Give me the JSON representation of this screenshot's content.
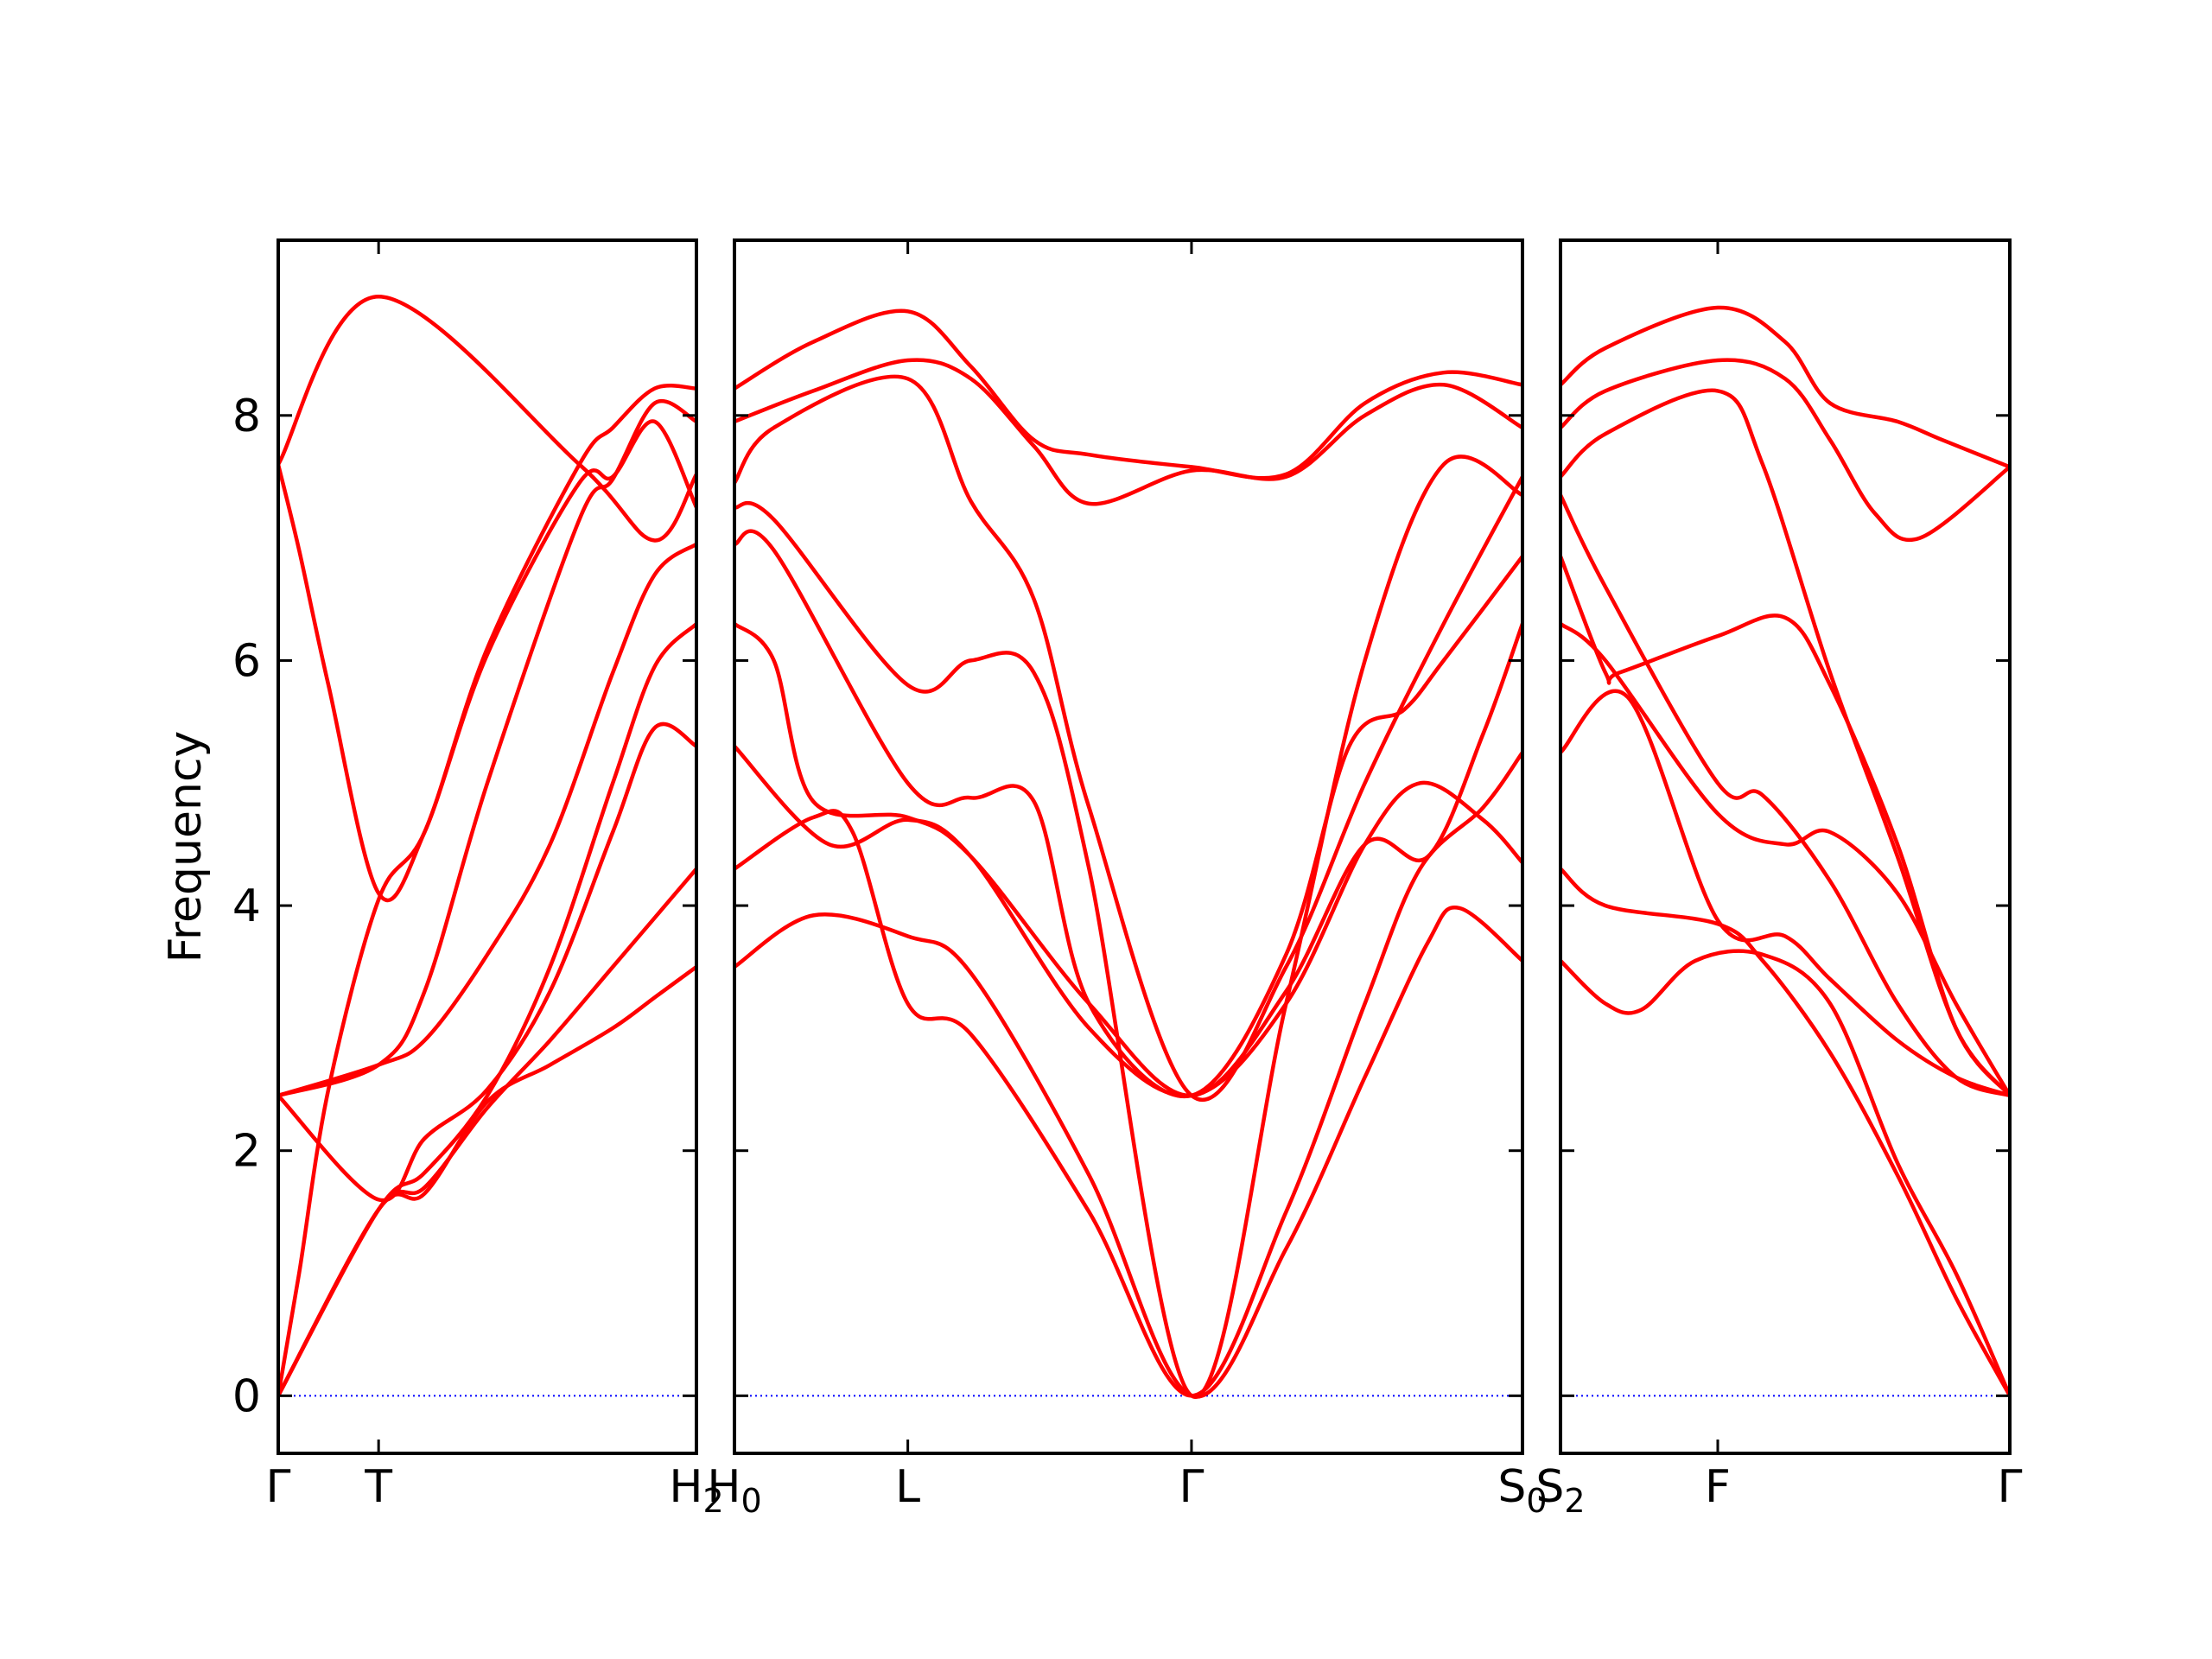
{
  "chart_data": {
    "type": "line",
    "ylabel": "Frequency",
    "ylim": [
      -0.47,
      9.43
    ],
    "yticks": [
      0,
      2,
      4,
      6,
      8
    ],
    "line_color": "#ff0000",
    "zero_line_color": "#0000ff",
    "grid": false,
    "panels": [
      {
        "xticks": [
          {
            "x": 0.0,
            "label": "Γ"
          },
          {
            "x": 0.24,
            "label": "T"
          },
          {
            "x": 1.0,
            "label": "H",
            "sub": "2"
          }
        ],
        "series": [
          {
            "x": [
              0,
              0.24,
              0.72,
              0.9,
              1.0
            ],
            "y": [
              7.6,
              8.97,
              7.6,
              6.98,
              7.52
            ]
          },
          {
            "x": [
              0,
              0.05,
              0.12,
              0.24,
              0.35,
              0.5,
              0.72,
              0.8,
              0.9,
              1.0
            ],
            "y": [
              7.6,
              6.9,
              5.8,
              4.1,
              4.6,
              6.1,
              7.6,
              7.9,
              8.22,
              8.22
            ]
          },
          {
            "x": [
              0,
              0.05,
              0.12,
              0.24,
              0.35,
              0.5,
              0.72,
              0.8,
              0.9,
              1.0
            ],
            "y": [
              0.0,
              1.0,
              2.5,
              4.05,
              4.6,
              6.05,
              7.45,
              7.5,
              7.95,
              7.25
            ]
          },
          {
            "x": [
              0,
              0.24,
              0.35,
              0.5,
              0.72,
              0.8,
              0.9,
              1.0
            ],
            "y": [
              2.45,
              2.7,
              3.3,
              5.0,
              7.15,
              7.48,
              8.1,
              7.95
            ]
          },
          {
            "x": [
              0,
              0.24,
              0.35,
              0.5,
              0.65,
              0.8,
              0.9,
              1.0
            ],
            "y": [
              2.45,
              2.7,
              2.9,
              3.6,
              4.5,
              5.9,
              6.7,
              6.95
            ]
          },
          {
            "x": [
              0,
              0.24,
              0.35,
              0.5,
              0.65,
              0.8,
              0.9,
              1.0
            ],
            "y": [
              0.0,
              1.52,
              1.82,
              2.45,
              3.5,
              5.0,
              5.95,
              6.3
            ]
          },
          {
            "x": [
              0,
              0.24,
              0.35,
              0.5,
              0.65,
              0.8,
              0.9,
              1.0
            ],
            "y": [
              2.45,
              1.6,
              2.1,
              2.5,
              3.3,
              4.6,
              5.45,
              5.3
            ]
          },
          {
            "x": [
              0,
              0.24,
              0.35,
              0.5,
              0.65,
              0.8,
              0.9,
              1.0
            ],
            "y": [
              0.0,
              1.52,
              1.7,
              2.35,
              2.9,
              3.5,
              3.9,
              4.3
            ]
          },
          {
            "x": [
              0,
              0.24,
              0.35,
              0.5,
              0.65,
              0.8,
              0.9,
              1.0
            ],
            "y": [
              0.0,
              1.52,
              1.65,
              2.4,
              2.7,
              3.0,
              3.25,
              3.5
            ]
          }
        ]
      },
      {
        "xticks": [
          {
            "x": 0.0,
            "label": "H",
            "sub": "0"
          },
          {
            "x": 0.22,
            "label": "L"
          },
          {
            "x": 0.58,
            "label": "Γ"
          },
          {
            "x": 1.0,
            "label": "S",
            "sub": "0"
          }
        ],
        "series": [
          {
            "x": [
              0,
              0.1,
              0.22,
              0.3,
              0.38,
              0.45,
              0.58,
              0.7,
              0.8,
              0.9,
              1.0
            ],
            "y": [
              8.22,
              8.6,
              8.85,
              8.4,
              7.8,
              7.68,
              7.58,
              7.52,
              8.1,
              8.35,
              8.25
            ]
          },
          {
            "x": [
              0,
              0.1,
              0.22,
              0.3,
              0.38,
              0.45,
              0.58,
              0.7,
              0.8,
              0.9,
              1.0
            ],
            "y": [
              7.95,
              8.2,
              8.45,
              8.3,
              7.75,
              7.28,
              7.55,
              7.5,
              8.0,
              8.25,
              7.9
            ]
          },
          {
            "x": [
              0,
              0.05,
              0.22,
              0.3,
              0.38,
              0.45,
              0.58,
              0.7,
              0.8,
              0.9,
              1.0
            ],
            "y": [
              7.45,
              7.9,
              8.3,
              7.3,
              6.5,
              4.8,
              2.45,
              3.5,
              5.0,
              6.3,
              7.5
            ]
          },
          {
            "x": [
              0,
              0.05,
              0.22,
              0.3,
              0.38,
              0.45,
              0.58,
              0.7,
              0.8,
              0.9,
              1.0
            ],
            "y": [
              7.25,
              7.15,
              5.8,
              6.0,
              5.9,
              4.3,
              0.0,
              3.2,
              6.0,
              7.6,
              7.35
            ]
          },
          {
            "x": [
              0,
              0.05,
              0.22,
              0.3,
              0.38,
              0.45,
              0.58,
              0.7,
              0.78,
              0.85,
              0.9,
              1.0
            ],
            "y": [
              6.95,
              6.9,
              5.0,
              4.88,
              4.85,
              3.2,
              2.45,
              3.6,
              5.3,
              5.6,
              6.0,
              6.85
            ]
          },
          {
            "x": [
              0,
              0.05,
              0.1,
              0.22,
              0.3,
              0.45,
              0.58,
              0.7,
              0.8,
              0.88,
              0.95,
              1.0
            ],
            "y": [
              6.3,
              6.0,
              4.85,
              4.72,
              4.4,
              3.2,
              2.45,
              3.3,
              4.5,
              4.4,
              5.4,
              6.3
            ]
          },
          {
            "x": [
              0,
              0.12,
              0.22,
              0.3,
              0.45,
              0.58,
              0.7,
              0.8,
              0.87,
              0.95,
              1.0
            ],
            "y": [
              5.3,
              4.5,
              4.7,
              4.4,
              3.0,
              2.45,
              3.2,
              4.5,
              5.0,
              4.7,
              4.35
            ]
          },
          {
            "x": [
              0,
              0.1,
              0.15,
              0.22,
              0.3,
              0.45,
              0.58,
              0.7,
              0.8,
              0.87,
              0.95,
              1.0
            ],
            "y": [
              4.3,
              4.72,
              4.6,
              3.2,
              2.95,
              1.5,
              0.0,
              1.5,
              3.2,
              4.3,
              4.8,
              5.25
            ]
          },
          {
            "x": [
              0,
              0.1,
              0.22,
              0.3,
              0.45,
              0.58,
              0.7,
              0.8,
              0.88,
              0.92,
              1.0
            ],
            "y": [
              3.5,
              3.92,
              3.75,
              3.45,
              1.8,
              0.0,
              1.2,
              2.6,
              3.7,
              3.98,
              3.55
            ]
          }
        ]
      },
      {
        "xticks": [
          {
            "x": 0.0,
            "label": "S",
            "sub": "2"
          },
          {
            "x": 0.35,
            "label": "F"
          },
          {
            "x": 1.0,
            "label": "Γ"
          }
        ],
        "series": [
          {
            "x": [
              0,
              0.1,
              0.35,
              0.5,
              0.6,
              0.75,
              0.85,
              1.0
            ],
            "y": [
              8.25,
              8.55,
              8.88,
              8.6,
              8.1,
              7.95,
              7.8,
              7.58
            ]
          },
          {
            "x": [
              0,
              0.1,
              0.35,
              0.5,
              0.6,
              0.7,
              0.8,
              1.0
            ],
            "y": [
              7.9,
              8.2,
              8.45,
              8.3,
              7.8,
              7.2,
              7.0,
              7.58
            ]
          },
          {
            "x": [
              0,
              0.1,
              0.35,
              0.45,
              0.6,
              0.75,
              0.88,
              1.0
            ],
            "y": [
              7.5,
              7.85,
              8.2,
              7.6,
              5.9,
              4.4,
              3.0,
              2.45
            ]
          },
          {
            "x": [
              0,
              0.1,
              0.35,
              0.45,
              0.6,
              0.75,
              0.88,
              1.0
            ],
            "y": [
              7.35,
              6.6,
              5.0,
              4.9,
              4.2,
              3.2,
              2.6,
              2.45
            ]
          },
          {
            "x": [
              0,
              0.1,
              0.13,
              0.35,
              0.5,
              0.6,
              0.75,
              0.88,
              1.0
            ],
            "y": [
              6.85,
              5.9,
              5.9,
              6.2,
              6.35,
              5.8,
              4.5,
              3.0,
              2.45
            ]
          },
          {
            "x": [
              0,
              0.1,
              0.35,
              0.5,
              0.6,
              0.75,
              0.88,
              1.0
            ],
            "y": [
              6.3,
              6.0,
              4.75,
              4.5,
              4.6,
              4.1,
              3.2,
              2.45
            ]
          },
          {
            "x": [
              0,
              0.15,
              0.35,
              0.5,
              0.6,
              0.75,
              0.88,
              1.0
            ],
            "y": [
              5.25,
              5.7,
              3.88,
              3.75,
              3.4,
              2.9,
              2.6,
              2.45
            ]
          },
          {
            "x": [
              0,
              0.1,
              0.35,
              0.45,
              0.6,
              0.75,
              0.88,
              1.0
            ],
            "y": [
              4.3,
              4.0,
              3.85,
              3.55,
              2.8,
              1.8,
              0.8,
              0.0
            ]
          },
          {
            "x": [
              0,
              0.1,
              0.18,
              0.3,
              0.45,
              0.6,
              0.75,
              0.88,
              1.0
            ],
            "y": [
              3.55,
              3.2,
              3.15,
              3.55,
              3.6,
              3.2,
              1.9,
              1.0,
              0.0
            ]
          }
        ]
      }
    ]
  }
}
